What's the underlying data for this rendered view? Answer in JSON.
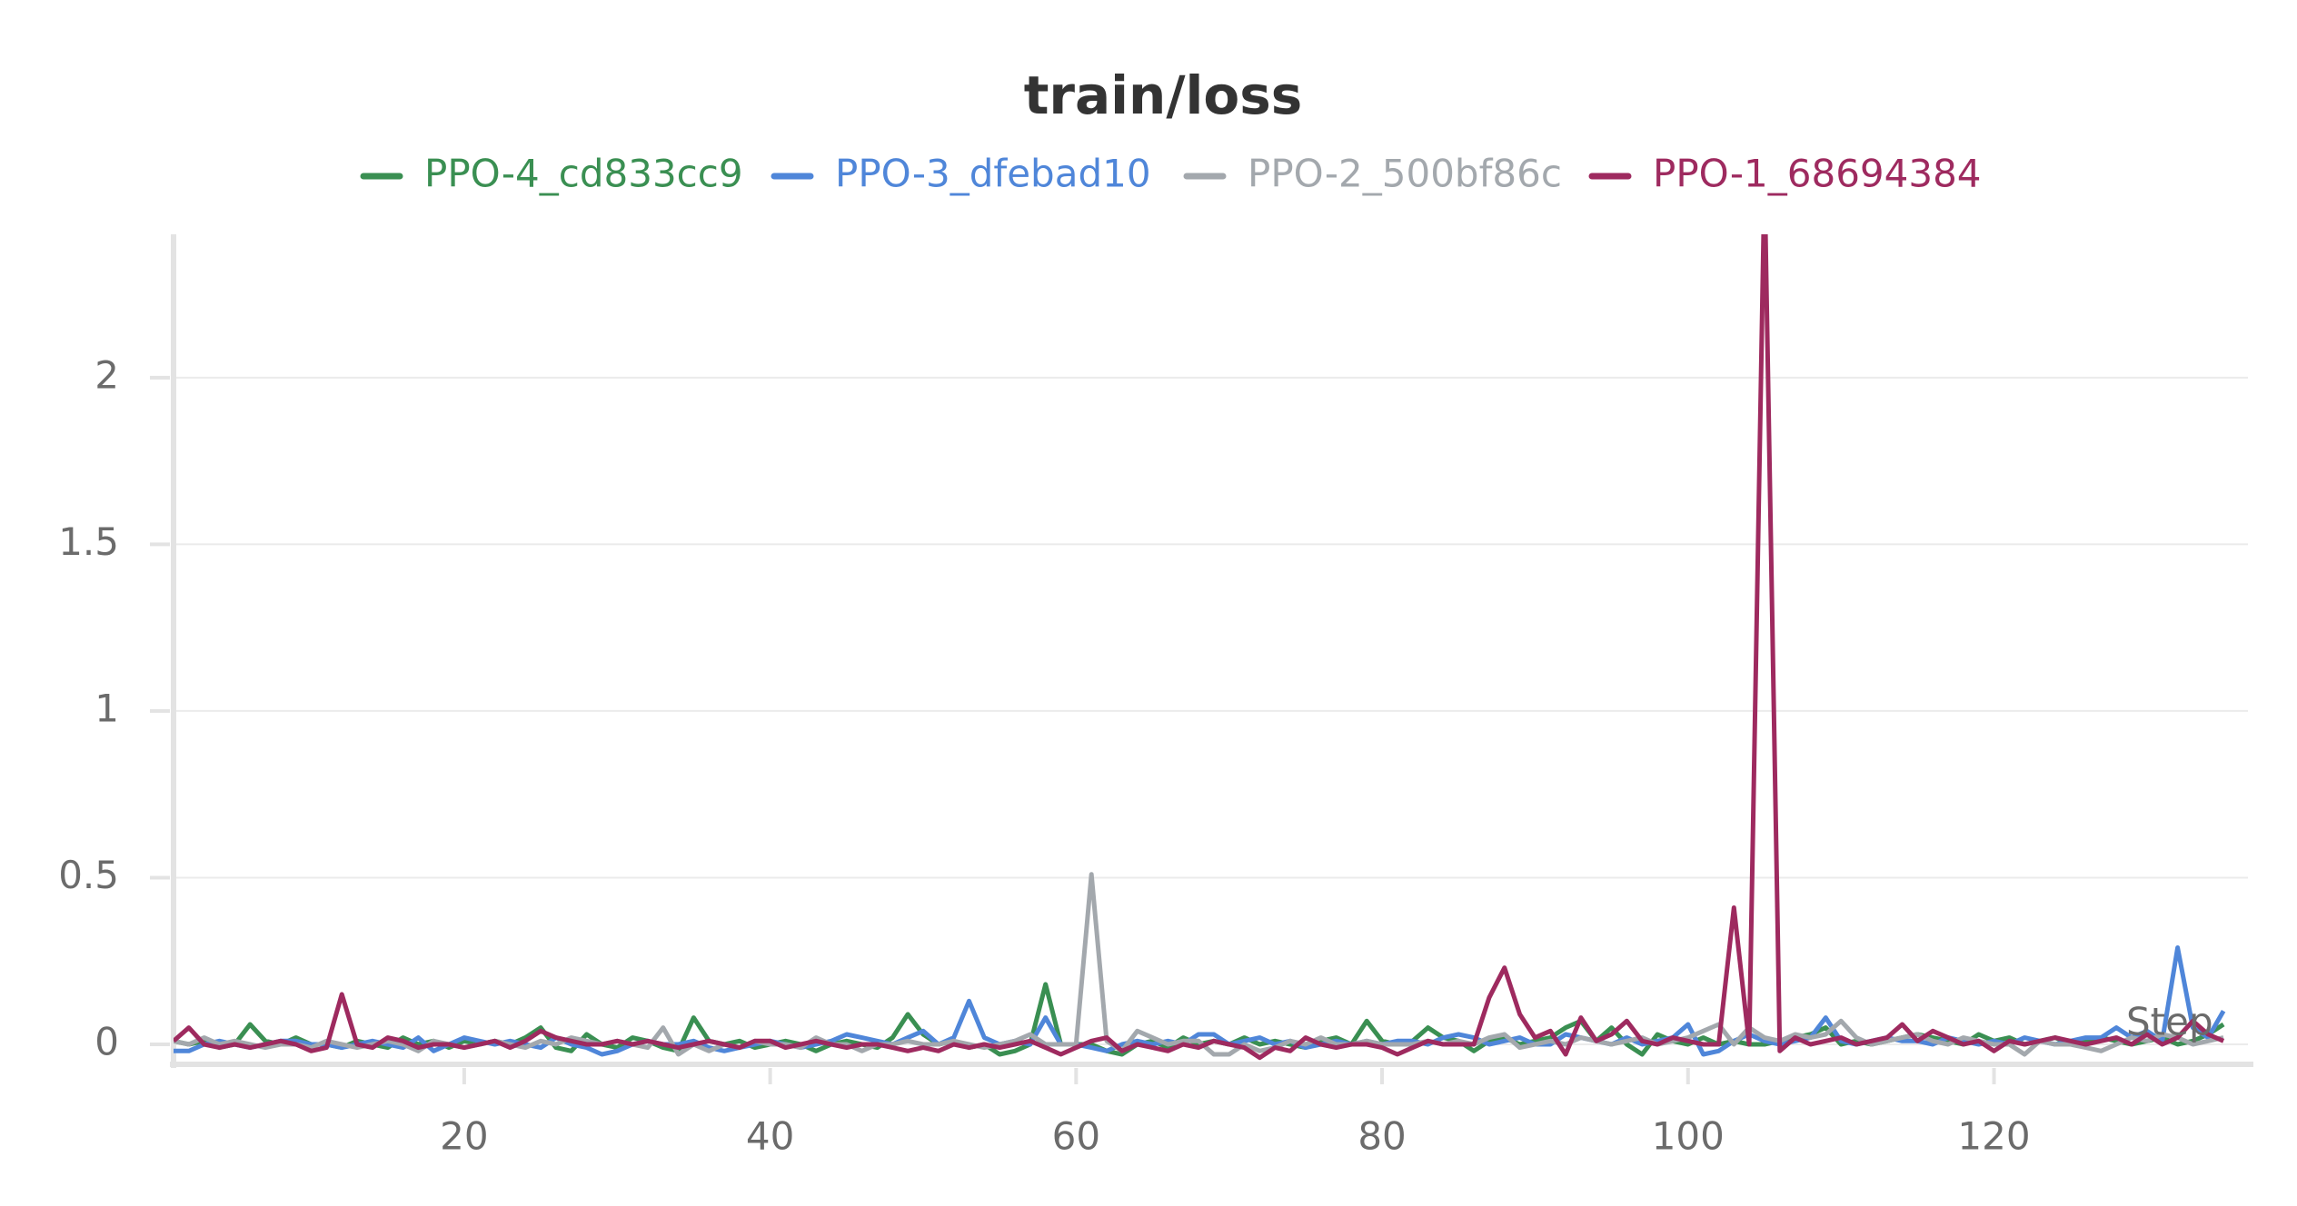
{
  "chart_data": {
    "type": "line",
    "title": "train/loss",
    "x_label": "Step",
    "xlim": [
      1,
      136.6
    ],
    "xticks": [
      20,
      40,
      60,
      80,
      100,
      120
    ],
    "ylim": [
      -0.06,
      2.43
    ],
    "yticks": [
      0,
      0.5,
      1,
      1.5,
      2
    ],
    "grid": true,
    "legend": "top",
    "x": [
      1,
      2,
      3,
      4,
      5,
      6,
      7,
      8,
      9,
      10,
      11,
      12,
      13,
      14,
      15,
      16,
      17,
      18,
      19,
      20,
      21,
      22,
      23,
      24,
      25,
      26,
      27,
      28,
      29,
      30,
      31,
      32,
      33,
      34,
      35,
      36,
      37,
      38,
      39,
      40,
      41,
      42,
      43,
      44,
      45,
      46,
      47,
      48,
      49,
      50,
      51,
      52,
      53,
      54,
      55,
      56,
      57,
      58,
      59,
      60,
      61,
      62,
      63,
      64,
      65,
      66,
      67,
      68,
      69,
      70,
      71,
      72,
      73,
      74,
      75,
      76,
      77,
      78,
      79,
      80,
      81,
      82,
      83,
      84,
      85,
      86,
      87,
      88,
      89,
      90,
      91,
      92,
      93,
      94,
      95,
      96,
      97,
      98,
      99,
      100,
      101,
      102,
      103,
      104,
      105,
      106,
      107,
      108,
      109,
      110,
      111,
      112,
      113,
      114,
      115,
      116,
      117,
      118,
      119,
      120,
      121,
      122,
      123,
      124,
      125,
      126,
      127,
      128,
      129,
      130,
      131,
      132,
      133,
      134,
      135
    ],
    "series": [
      {
        "name": "PPO-4_cd833cc9",
        "color": "#3a8f52",
        "values": [
          0.01,
          0,
          0.01,
          -0.01,
          0,
          0.06,
          0.01,
          0,
          0.02,
          0,
          0,
          -0.01,
          0.01,
          0,
          -0.01,
          0.02,
          0,
          0.01,
          -0.01,
          0.01,
          0,
          0.01,
          0,
          0.02,
          0.05,
          -0.01,
          -0.02,
          0.03,
          0,
          -0.01,
          0.02,
          0.01,
          -0.01,
          -0.02,
          0.08,
          0.01,
          0,
          0.01,
          -0.01,
          0,
          0.01,
          0,
          -0.02,
          0,
          0.01,
          0,
          -0.01,
          0.02,
          0.09,
          0.03,
          0,
          0.01,
          -0.01,
          0,
          -0.03,
          -0.02,
          0,
          0.18,
          0,
          0,
          0,
          -0.02,
          -0.03,
          0,
          0.01,
          -0.01,
          0.02,
          0,
          0.01,
          0,
          0.02,
          0,
          0.01,
          0,
          -0.01,
          0.01,
          0.02,
          0,
          0.07,
          0.01,
          0,
          0.01,
          0.05,
          0.02,
          0.01,
          -0.02,
          0.01,
          0.02,
          0,
          0.01,
          0.02,
          0.05,
          0.07,
          0.01,
          0.05,
          0,
          -0.03,
          0.03,
          0.01,
          0,
          0.02,
          0,
          0.01,
          0,
          0,
          0.01,
          0.02,
          0.03,
          0.05,
          0,
          0.01,
          0,
          0.01,
          0.02,
          0.03,
          0.02,
          0.01,
          0,
          0.03,
          0.01,
          0.02,
          0,
          0.01,
          0.02,
          0,
          0.01,
          0.02,
          0.01,
          0,
          0.01,
          0.02,
          0,
          0.01,
          0.03,
          0.06
        ]
      },
      {
        "name": "PPO-3_dfebad10",
        "color": "#4f86d9",
        "values": [
          -0.02,
          -0.02,
          0,
          0.01,
          0,
          -0.01,
          0,
          0.01,
          0.01,
          0,
          0,
          -0.01,
          0,
          0.01,
          0,
          -0.01,
          0.02,
          -0.02,
          0,
          0.02,
          0.01,
          0,
          0.01,
          0,
          -0.01,
          0.02,
          0,
          -0.01,
          -0.03,
          -0.02,
          0,
          0.01,
          0,
          0,
          0.01,
          -0.01,
          -0.02,
          -0.01,
          0,
          0.01,
          0,
          -0.01,
          0,
          0.01,
          0.03,
          0.02,
          0.01,
          0,
          0.02,
          0.04,
          0,
          0.02,
          0.13,
          0.02,
          0,
          0.01,
          0,
          0.08,
          0,
          0,
          -0.01,
          -0.02,
          0,
          0.01,
          0,
          0.01,
          0,
          0.03,
          0.03,
          0,
          0.01,
          0.02,
          0,
          0.01,
          -0.01,
          0,
          0.01,
          0,
          0.01,
          0,
          0.01,
          0.01,
          0,
          0.02,
          0.03,
          0.02,
          0,
          0.01,
          0.02,
          0,
          0,
          0.03,
          0.02,
          0.01,
          0,
          0.02,
          0,
          0.01,
          0.02,
          0.06,
          -0.03,
          -0.02,
          0.01,
          0.03,
          0.01,
          0,
          0.01,
          0.02,
          0.08,
          0.01,
          0,
          0.01,
          0.02,
          0.01,
          0.01,
          0,
          0.02,
          0.01,
          0,
          0.01,
          0,
          0.02,
          0.01,
          0,
          0.01,
          0.02,
          0.02,
          0.05,
          0.02,
          0.04,
          0.01,
          0.29,
          0.05,
          0.02,
          0.1
        ]
      },
      {
        "name": "PPO-2_500bf86c",
        "color": "#a3a8ad",
        "values": [
          0.01,
          0,
          0.02,
          0,
          0.01,
          0,
          -0.01,
          0,
          0,
          -0.01,
          0.01,
          0,
          -0.01,
          0,
          0.01,
          0,
          -0.02,
          0.01,
          0,
          -0.01,
          0,
          0.01,
          0,
          -0.01,
          0.01,
          0,
          0.02,
          0.01,
          0,
          0.01,
          0,
          -0.01,
          0.05,
          -0.03,
          0,
          -0.02,
          0,
          -0.01,
          0.01,
          0,
          0,
          -0.01,
          0.02,
          0,
          0,
          -0.02,
          0,
          0,
          0.01,
          0,
          0,
          0.01,
          0,
          -0.01,
          0,
          0.01,
          0.03,
          0,
          0,
          0,
          0.51,
          0.01,
          -0.02,
          0.04,
          0.02,
          0,
          0.01,
          0.01,
          -0.03,
          -0.03,
          0,
          -0.02,
          -0.01,
          0.01,
          0,
          0.02,
          0,
          0,
          0.01,
          0,
          0,
          0,
          0.01,
          0,
          0.01,
          0,
          0.02,
          0.03,
          -0.01,
          0,
          0.01,
          0,
          0.02,
          0.01,
          0,
          0.01,
          0.02,
          0,
          0.01,
          0.02,
          0.04,
          0.06,
          0,
          0.05,
          0.02,
          0.01,
          0.03,
          0.02,
          0.03,
          0.07,
          0.02,
          0,
          0.01,
          0.02,
          0.03,
          0.01,
          0,
          0.02,
          0.01,
          0,
          0,
          -0.03,
          0.01,
          0,
          0,
          -0.01,
          -0.02,
          0,
          0.02,
          0.01,
          0.03,
          0.02,
          0,
          0.01,
          0.02
        ]
      },
      {
        "name": "PPO-1_68694384",
        "color": "#9e2a5f",
        "values": [
          0.01,
          0.05,
          0,
          -0.01,
          0,
          -0.01,
          0,
          0.01,
          0,
          -0.02,
          -0.01,
          0.15,
          0,
          -0.01,
          0.02,
          0.01,
          -0.01,
          0,
          0,
          -0.01,
          0,
          0.01,
          -0.01,
          0.01,
          0.04,
          0.02,
          0.01,
          0,
          0,
          0.01,
          0,
          0.01,
          0,
          -0.01,
          0,
          0.01,
          0,
          -0.01,
          0.01,
          0.01,
          -0.01,
          0,
          0.01,
          0,
          -0.01,
          0,
          0,
          -0.01,
          -0.02,
          -0.01,
          -0.02,
          0,
          -0.01,
          0,
          -0.01,
          0,
          0.01,
          -0.01,
          -0.03,
          -0.01,
          0.01,
          0.02,
          -0.02,
          0,
          -0.01,
          -0.02,
          0,
          -0.01,
          0.01,
          0,
          -0.01,
          -0.04,
          -0.01,
          -0.02,
          0.02,
          0,
          -0.01,
          0,
          0,
          -0.01,
          -0.03,
          -0.01,
          0.01,
          0,
          0,
          0,
          0.14,
          0.23,
          0.09,
          0.02,
          0.04,
          -0.03,
          0.08,
          0.01,
          0.03,
          0.07,
          0.01,
          0,
          0.02,
          0.01,
          0,
          0,
          0.41,
          0,
          2.6,
          -0.02,
          0.02,
          0,
          0.01,
          0.02,
          0,
          0.01,
          0.02,
          0.06,
          0.01,
          0.04,
          0.02,
          0,
          0.01,
          -0.02,
          0.01,
          0,
          0.01,
          0.02,
          0.01,
          0,
          0.01,
          0.02,
          0,
          0.03,
          0,
          0.02,
          0.07,
          0.03,
          0.01
        ]
      }
    ]
  }
}
